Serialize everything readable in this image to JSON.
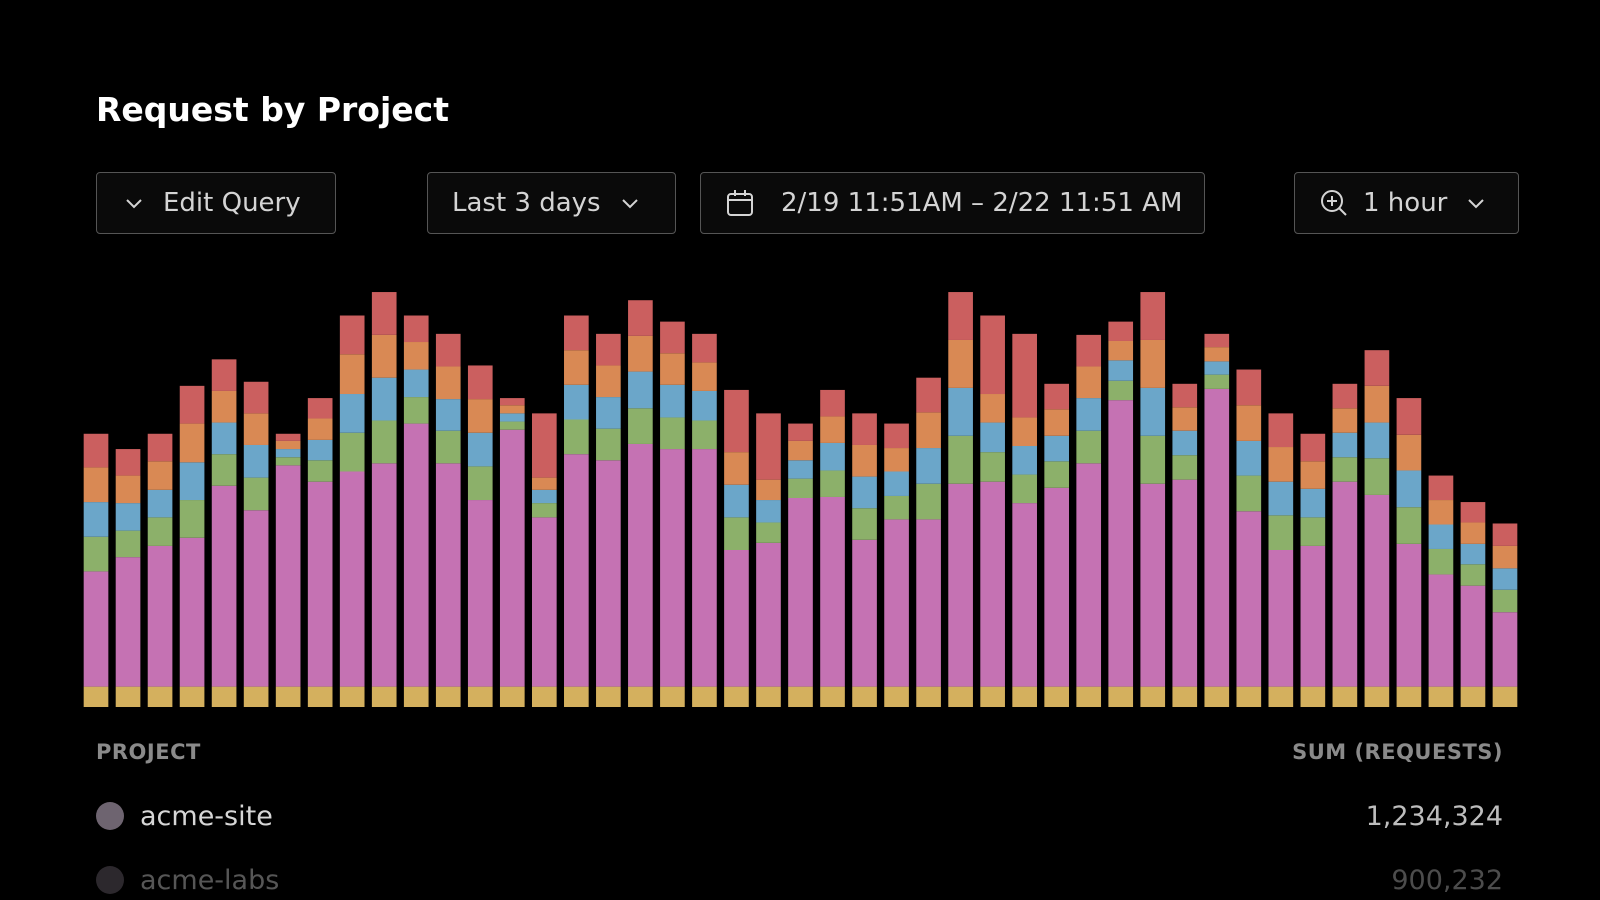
{
  "header": {
    "title": "Request by Project"
  },
  "controls": {
    "edit_query": "Edit Query",
    "range": "Last 3 days",
    "date_range": "2/19 11:51AM – 2/22 11:51 AM",
    "interval": "1 hour"
  },
  "chart_data": {
    "type": "bar",
    "stacked": true,
    "ylim": [
      0,
      410
    ],
    "series": [
      {
        "color": "#d4b05e",
        "values": [
          20,
          20,
          20,
          20,
          20,
          20,
          20,
          20,
          20,
          20,
          20,
          20,
          20,
          20,
          20,
          20,
          20,
          20,
          20,
          20,
          20,
          20,
          20,
          20,
          20,
          20,
          20,
          20,
          20,
          20,
          20,
          20,
          20,
          20,
          20,
          20,
          20,
          20,
          20,
          20,
          20,
          20,
          20,
          20,
          20
        ]
      },
      {
        "color": "#c572b3",
        "values": [
          113,
          127,
          138,
          146,
          197,
          173,
          217,
          201,
          211,
          219,
          258,
          219,
          183,
          252,
          166,
          228,
          222,
          238,
          233,
          233,
          134,
          141,
          185,
          186,
          144,
          164,
          164,
          199,
          201,
          180,
          195,
          219,
          281,
          199,
          203,
          292,
          172,
          134,
          138,
          201,
          188,
          140,
          110,
          99,
          73
        ]
      },
      {
        "color": "#8cb06a",
        "values": [
          34,
          26,
          28,
          37,
          31,
          32,
          8,
          21,
          38,
          42,
          26,
          32,
          33,
          8,
          14,
          34,
          31,
          35,
          31,
          28,
          32,
          20,
          19,
          26,
          31,
          23,
          35,
          47,
          29,
          28,
          26,
          32,
          19,
          47,
          24,
          14,
          35,
          34,
          28,
          24,
          36,
          36,
          25,
          21,
          22
        ]
      },
      {
        "color": "#6ba6c9",
        "values": [
          34,
          27,
          27,
          37,
          31,
          32,
          8,
          20,
          38,
          42,
          27,
          31,
          33,
          8,
          13,
          34,
          31,
          36,
          32,
          29,
          32,
          22,
          18,
          27,
          31,
          24,
          35,
          47,
          29,
          28,
          25,
          32,
          20,
          47,
          24,
          13,
          34,
          33,
          28,
          24,
          35,
          36,
          24,
          20,
          21
        ]
      },
      {
        "color": "#d98954",
        "values": [
          34,
          27,
          28,
          38,
          31,
          31,
          8,
          21,
          39,
          42,
          27,
          32,
          33,
          8,
          12,
          34,
          31,
          35,
          31,
          28,
          32,
          20,
          19,
          26,
          31,
          23,
          35,
          47,
          28,
          28,
          26,
          31,
          19,
          47,
          23,
          14,
          35,
          34,
          27,
          24,
          36,
          35,
          24,
          21,
          22
        ]
      },
      {
        "color": "#cb5f5f",
        "values": [
          33,
          26,
          27,
          37,
          31,
          31,
          7,
          20,
          38,
          42,
          26,
          32,
          33,
          7,
          63,
          34,
          31,
          35,
          31,
          28,
          61,
          65,
          17,
          26,
          31,
          24,
          34,
          47,
          77,
          82,
          25,
          31,
          19,
          47,
          23,
          13,
          35,
          33,
          27,
          24,
          35,
          36,
          24,
          20,
          22
        ]
      }
    ]
  },
  "table": {
    "columns": [
      "PROJECT",
      "SUM (REQUESTS)"
    ],
    "rows": [
      [
        "acme-site",
        "1,234,324"
      ],
      [
        "acme-labs",
        "900,232"
      ]
    ]
  }
}
